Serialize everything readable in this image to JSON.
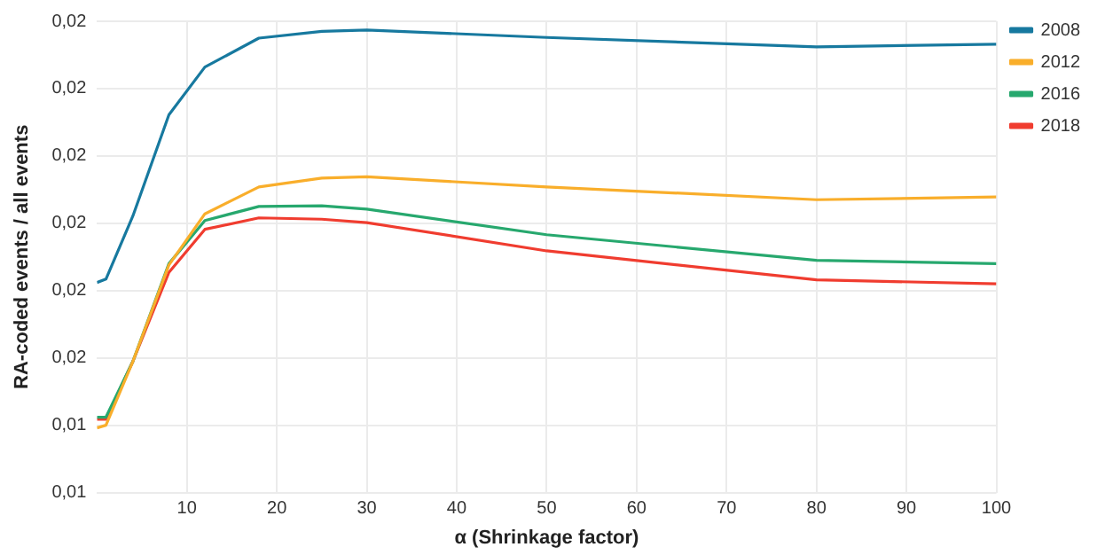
{
  "chart_data": {
    "type": "line",
    "xlabel": "α (Shrinkage factor)",
    "ylabel": "RA-coded events / all events",
    "x": [
      0,
      1,
      4,
      8,
      12,
      18,
      25,
      30,
      50,
      80,
      100
    ],
    "series": [
      {
        "name": "2008",
        "color": "#17799f",
        "values": [
          0.01612,
          0.01617,
          0.01711,
          0.01861,
          0.01932,
          0.01975,
          0.01985,
          0.01987,
          0.01976,
          0.01962,
          0.01966
        ]
      },
      {
        "name": "2012",
        "color": "#f9ae2b",
        "values": [
          0.01396,
          0.014,
          0.01495,
          0.01638,
          0.01714,
          0.01754,
          0.01767,
          0.01769,
          0.01754,
          0.01735,
          0.01739
        ]
      },
      {
        "name": "2016",
        "color": "#27a86e",
        "values": [
          0.01412,
          0.01412,
          0.01495,
          0.0164,
          0.01704,
          0.01725,
          0.01726,
          0.01721,
          0.01683,
          0.01645,
          0.0164
        ]
      },
      {
        "name": "2018",
        "color": "#f03c2f",
        "values": [
          0.01409,
          0.01409,
          0.01495,
          0.01627,
          0.01691,
          0.01708,
          0.01706,
          0.01701,
          0.01659,
          0.01616,
          0.0161
        ]
      }
    ],
    "xlim": [
      0,
      100
    ],
    "xticks": [
      10,
      20,
      30,
      40,
      50,
      60,
      70,
      80,
      90,
      100
    ],
    "ylim": [
      0.013,
      0.02
    ],
    "yticks": [
      {
        "value": 0.013,
        "label": "0,01"
      },
      {
        "value": 0.014,
        "label": "0,01"
      },
      {
        "value": 0.015,
        "label": "0,02"
      },
      {
        "value": 0.016,
        "label": "0,02"
      },
      {
        "value": 0.017,
        "label": "0,02"
      },
      {
        "value": 0.018,
        "label": "0,02"
      },
      {
        "value": 0.019,
        "label": "0,02"
      },
      {
        "value": 0.02,
        "label": "0,02"
      }
    ],
    "grid": true,
    "legend": "top right",
    "marker": "none",
    "line_style": "solid"
  }
}
